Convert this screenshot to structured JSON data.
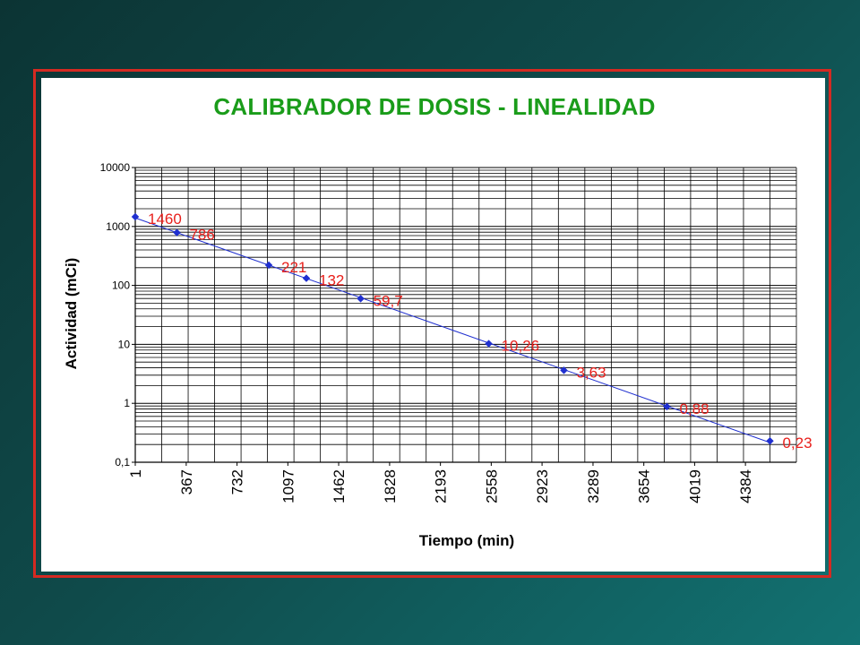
{
  "colors": {
    "frame": "#d42a22",
    "title": "#1a9c1a",
    "series": "#1f2fd0",
    "data_label": "#e8201c"
  },
  "chart_data": {
    "type": "scatter",
    "title": "CALIBRADOR DE DOSIS - LINEALIDAD",
    "xlabel": "Tiempo (min)",
    "ylabel": "Actividad (mCi)",
    "x_ticks": [
      "1",
      "367",
      "732",
      "1097",
      "1462",
      "1828",
      "2193",
      "2558",
      "2923",
      "3289",
      "3654",
      "4019",
      "4384"
    ],
    "xlim": [
      1,
      4750
    ],
    "y_scale": "log",
    "ylim": [
      0.1,
      10000
    ],
    "y_ticks": [
      "10000",
      "1000",
      "100",
      "10",
      "1",
      "0,1"
    ],
    "grid": true,
    "trendline": true,
    "points": [
      {
        "x": 1,
        "y": 1460,
        "label": "1460"
      },
      {
        "x": 300,
        "y": 786,
        "label": "786"
      },
      {
        "x": 960,
        "y": 221,
        "label": "221"
      },
      {
        "x": 1230,
        "y": 132,
        "label": "132"
      },
      {
        "x": 1620,
        "y": 59.7,
        "label": "59,7"
      },
      {
        "x": 2540,
        "y": 10.26,
        "label": "10,26"
      },
      {
        "x": 3080,
        "y": 3.63,
        "label": "3,63"
      },
      {
        "x": 3820,
        "y": 0.88,
        "label": "0,88"
      },
      {
        "x": 4560,
        "y": 0.23,
        "label": "0,23"
      }
    ]
  }
}
